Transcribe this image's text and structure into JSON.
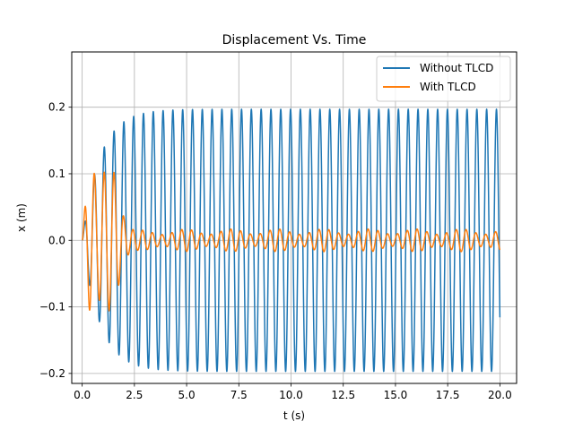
{
  "chart_data": {
    "type": "line",
    "title": "Displacement Vs. Time",
    "xlabel": "t (s)",
    "ylabel": "x (m)",
    "xlim": [
      -0.5,
      20.8
    ],
    "ylim": [
      -0.215,
      0.283
    ],
    "xticks": [
      0.0,
      2.5,
      5.0,
      7.5,
      10.0,
      12.5,
      15.0,
      17.5,
      20.0
    ],
    "xtick_labels": [
      "0.0",
      "2.5",
      "5.0",
      "7.5",
      "10.0",
      "12.5",
      "15.0",
      "17.5",
      "20.0"
    ],
    "yticks": [
      -0.2,
      -0.1,
      0.0,
      0.1,
      0.2
    ],
    "ytick_labels": [
      "−0.2",
      "−0.1",
      "0.0",
      "0.1",
      "0.2"
    ],
    "grid": true,
    "legend_position": "upper right",
    "series": [
      {
        "name": "Without TLCD",
        "color": "#1f77b4",
        "x_range": [
          0,
          20
        ],
        "frequency_hz": 2.13,
        "steady_amplitude": 0.197,
        "peaks": [
          [
            0.4,
            0.04
          ],
          [
            0.85,
            0.096
          ],
          [
            1.05,
            0.132
          ],
          [
            1.55,
            0.156
          ],
          [
            2.0,
            0.17
          ],
          [
            2.5,
            0.18
          ],
          [
            3.0,
            0.19
          ],
          [
            4.0,
            0.196
          ]
        ],
        "troughs": [
          [
            0.55,
            -0.07
          ],
          [
            0.8,
            -0.117
          ],
          [
            1.3,
            -0.145
          ],
          [
            1.8,
            -0.17
          ],
          [
            2.25,
            -0.18
          ],
          [
            2.75,
            -0.19
          ],
          [
            3.5,
            -0.196
          ]
        ]
      },
      {
        "name": "With TLCD",
        "color": "#ff7f0e",
        "x_range": [
          0,
          20
        ],
        "frequency_hz": 2.13,
        "peaks": [
          [
            0.4,
            0.04
          ],
          [
            0.95,
            0.09
          ],
          [
            1.1,
            0.105
          ],
          [
            1.5,
            0.1
          ],
          [
            2.1,
            0.06
          ],
          [
            2.5,
            0.05
          ],
          [
            3.0,
            0.015
          ]
        ],
        "troughs": [
          [
            0.55,
            -0.07
          ],
          [
            1.05,
            -0.08
          ],
          [
            1.3,
            -0.105
          ],
          [
            1.8,
            -0.07
          ],
          [
            2.5,
            -0.04
          ]
        ],
        "steady_amplitude_range": [
          0.008,
          0.018
        ],
        "x_end_value": 0.013
      }
    ]
  }
}
